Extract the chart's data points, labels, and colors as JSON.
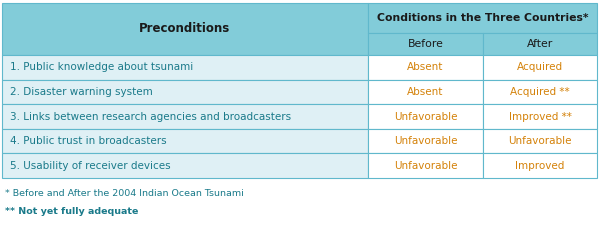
{
  "header_col": "Preconditions",
  "header_group": "Conditions in the Three Countries*",
  "header_before": "Before",
  "header_after": "After",
  "rows": [
    {
      "precondition": "1. Public knowledge about tsunami",
      "before": "Absent",
      "after": "Acquired"
    },
    {
      "precondition": "2. Disaster warning system",
      "before": "Absent",
      "after": "Acquired **"
    },
    {
      "precondition": "3. Links between research agencies and broadcasters",
      "before": "Unfavorable",
      "after": "Improved **"
    },
    {
      "precondition": "4. Public trust in broadcasters",
      "before": "Unfavorable",
      "after": "Unfavorable"
    },
    {
      "precondition": "5. Usability of receiver devices",
      "before": "Unfavorable",
      "after": "Improved"
    }
  ],
  "footnote1": "* Before and After the 2004 Indian Ocean Tsunami",
  "footnote2": "** Not yet fully adequate",
  "color_header_bg": "#82ccd9",
  "color_row_bg": "#dff0f5",
  "color_header_text": "#1a1a1a",
  "color_precond_text": "#1a7a8a",
  "color_value_text": "#d4820a",
  "color_absent_text": "#c47a10",
  "color_border": "#60b8cc",
  "color_white": "#ffffff",
  "color_footnote": "#1a7a8a"
}
